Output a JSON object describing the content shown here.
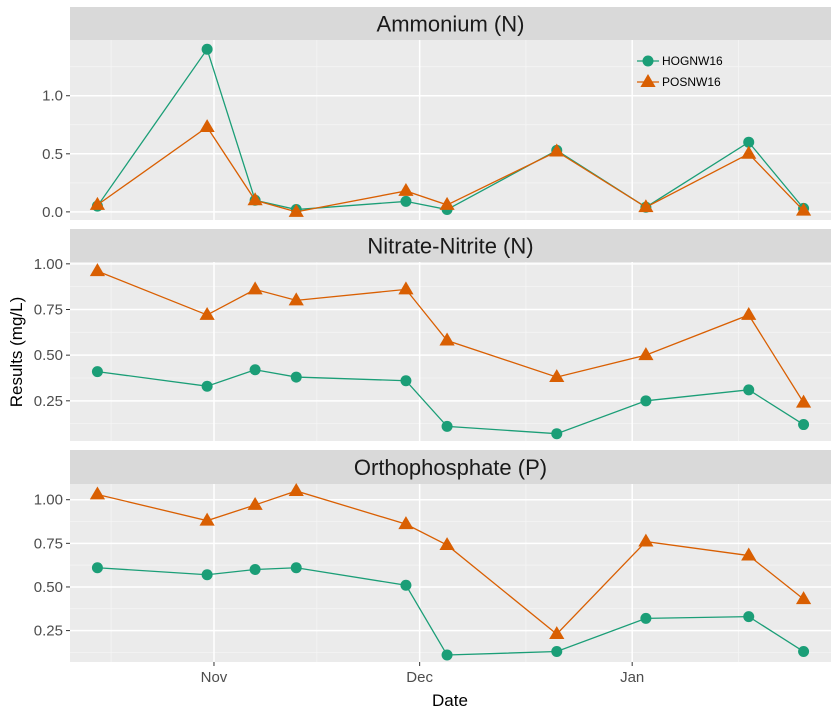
{
  "chart_data": {
    "type": "line",
    "xlabel": "Date",
    "ylabel": "Results (mg/L)",
    "x_ticks": [
      "Nov",
      "Dec",
      "Jan"
    ],
    "x_tick_dates": [
      "2016-11-01",
      "2016-12-01",
      "2017-01-01"
    ],
    "xlim": [
      "2016-10-11",
      "2017-01-30"
    ],
    "grid": true,
    "legend": {
      "placement": "top-right",
      "panel": 0
    },
    "colors": {
      "HOGNW16": "#1b9e77",
      "POSNW16": "#d95f02"
    },
    "markers": {
      "HOGNW16": "circle",
      "POSNW16": "triangle"
    },
    "x": [
      "2016-10-15",
      "2016-10-31",
      "2016-11-07",
      "2016-11-13",
      "2016-11-29",
      "2016-12-05",
      "2016-12-21",
      "2017-01-03",
      "2017-01-18",
      "2017-01-26"
    ],
    "panels": [
      {
        "title": "Ammonium (N)",
        "ylim": [
          -0.07,
          1.48
        ],
        "yticks": [
          0.0,
          0.5,
          1.0
        ],
        "ytick_labels": [
          "0.0",
          "0.5",
          "1.0"
        ],
        "series": [
          {
            "name": "HOGNW16",
            "x": [
              "2016-10-15",
              "2016-10-31",
              "2016-11-07",
              "2016-11-13",
              "2016-11-29",
              "2016-12-05",
              "2016-12-21",
              "2017-01-03",
              "2017-01-18",
              "2017-01-26"
            ],
            "values": [
              0.05,
              1.4,
              0.1,
              0.02,
              0.09,
              0.02,
              0.53,
              0.04,
              0.6,
              0.03
            ]
          },
          {
            "name": "POSNW16",
            "x": [
              "2016-10-15",
              "2016-10-31",
              "2016-11-07",
              "2016-11-13",
              "2016-11-29",
              "2016-12-05",
              "2016-12-21",
              "2017-01-03",
              "2017-01-18",
              "2017-01-26"
            ],
            "values": [
              0.06,
              0.73,
              0.1,
              0.0,
              0.18,
              0.06,
              0.52,
              0.04,
              0.5,
              0.01
            ]
          }
        ]
      },
      {
        "title": "Nitrate-Nitrite (N)",
        "ylim": [
          0.03,
          1.01
        ],
        "yticks": [
          0.25,
          0.5,
          0.75,
          1.0
        ],
        "ytick_labels": [
          "0.25",
          "0.50",
          "0.75",
          "1.00"
        ],
        "series": [
          {
            "name": "HOGNW16",
            "x": [
              "2016-10-15",
              "2016-10-31",
              "2016-11-07",
              "2016-11-13",
              "2016-11-29",
              "2016-12-05",
              "2016-12-21",
              "2017-01-03",
              "2017-01-18",
              "2017-01-26"
            ],
            "values": [
              0.41,
              0.33,
              0.42,
              0.38,
              0.36,
              0.11,
              0.07,
              0.25,
              0.31,
              0.12
            ]
          },
          {
            "name": "POSNW16",
            "x": [
              "2016-10-15",
              "2016-10-31",
              "2016-11-07",
              "2016-11-13",
              "2016-11-29",
              "2016-12-05",
              "2016-12-21",
              "2017-01-03",
              "2017-01-18",
              "2017-01-26"
            ],
            "values": [
              0.96,
              0.72,
              0.86,
              0.8,
              0.86,
              0.58,
              0.38,
              0.5,
              0.72,
              0.24
            ]
          }
        ]
      },
      {
        "title": "Orthophosphate (P)",
        "ylim": [
          0.07,
          1.09
        ],
        "yticks": [
          0.25,
          0.5,
          0.75,
          1.0
        ],
        "ytick_labels": [
          "0.25",
          "0.50",
          "0.75",
          "1.00"
        ],
        "series": [
          {
            "name": "HOGNW16",
            "x": [
              "2016-10-15",
              "2016-10-31",
              "2016-11-07",
              "2016-11-13",
              "2016-11-29",
              "2016-12-05",
              "2016-12-21",
              "2017-01-03",
              "2017-01-18",
              "2017-01-26"
            ],
            "values": [
              0.61,
              0.57,
              0.6,
              0.61,
              0.51,
              0.11,
              0.13,
              0.32,
              0.33,
              0.13
            ]
          },
          {
            "name": "POSNW16",
            "x": [
              "2016-10-15",
              "2016-10-31",
              "2016-11-07",
              "2016-11-13",
              "2016-11-29",
              "2016-12-05",
              "2016-12-21",
              "2017-01-03",
              "2017-01-18",
              "2017-01-26"
            ],
            "values": [
              1.03,
              0.88,
              0.97,
              1.05,
              0.86,
              0.74,
              0.23,
              0.76,
              0.68,
              0.43
            ]
          }
        ]
      }
    ]
  }
}
